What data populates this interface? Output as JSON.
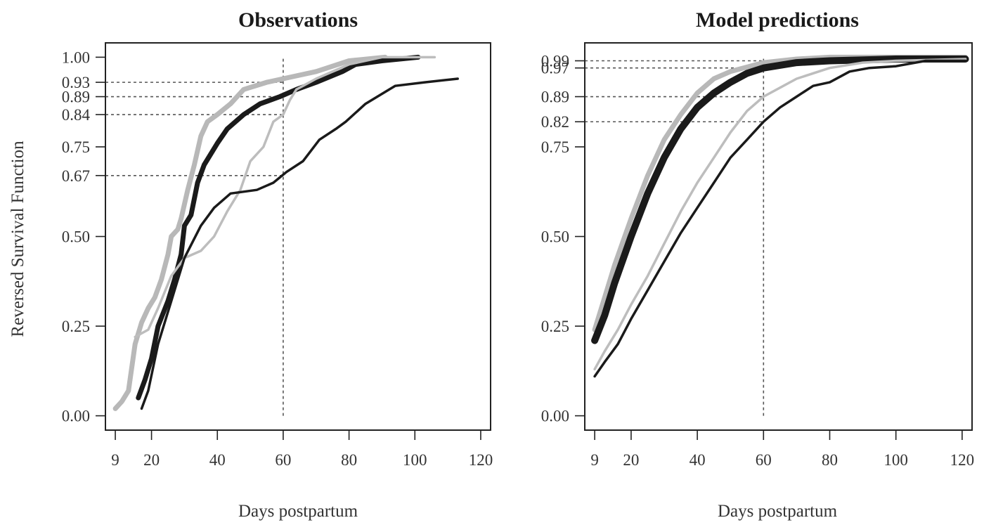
{
  "ylabel": "Reversed Survival Function",
  "chart_data": [
    {
      "type": "line",
      "title": "Observations",
      "xlabel": "Days postpartum",
      "ylabel": "Reversed Survival Function",
      "xlim": [
        6,
        123
      ],
      "ylim": [
        -0.04,
        1.04
      ],
      "x_ticks": [
        9,
        20,
        40,
        60,
        80,
        100,
        120
      ],
      "y_ticks": [
        0.0,
        0.25,
        0.5,
        0.67,
        0.75,
        0.84,
        0.89,
        0.93,
        1.0
      ],
      "y_tick_labels": [
        "0.00",
        "0.25",
        "0.50",
        "0.67",
        "0.75",
        "0.84",
        "0.89",
        "0.93",
        "1.00"
      ],
      "grid": false,
      "legend": "none",
      "reference_lines": {
        "vertical_x": 60,
        "horizontal_y": [
          0.93,
          0.89,
          0.84,
          0.67
        ]
      },
      "series": [
        {
          "color": "#b8b8b8",
          "width": 7,
          "points": [
            [
              9,
              0.02
            ],
            [
              11,
              0.04
            ],
            [
              13,
              0.07
            ],
            [
              15,
              0.2
            ],
            [
              17,
              0.26
            ],
            [
              19,
              0.3
            ],
            [
              21,
              0.33
            ],
            [
              23,
              0.38
            ],
            [
              25,
              0.45
            ],
            [
              26,
              0.5
            ],
            [
              28,
              0.52
            ],
            [
              29,
              0.55
            ],
            [
              31,
              0.63
            ],
            [
              33,
              0.7
            ],
            [
              35,
              0.78
            ],
            [
              37,
              0.82
            ],
            [
              40,
              0.84
            ],
            [
              44,
              0.87
            ],
            [
              48,
              0.91
            ],
            [
              55,
              0.93
            ],
            [
              60,
              0.94
            ],
            [
              70,
              0.96
            ],
            [
              80,
              0.99
            ],
            [
              91,
              1.0
            ]
          ]
        },
        {
          "color": "#1a1a1a",
          "width": 7,
          "points": [
            [
              16,
              0.05
            ],
            [
              18,
              0.1
            ],
            [
              20,
              0.16
            ],
            [
              22,
              0.25
            ],
            [
              25,
              0.32
            ],
            [
              27,
              0.38
            ],
            [
              29,
              0.45
            ],
            [
              30,
              0.53
            ],
            [
              32,
              0.56
            ],
            [
              34,
              0.65
            ],
            [
              36,
              0.7
            ],
            [
              40,
              0.76
            ],
            [
              43,
              0.8
            ],
            [
              48,
              0.84
            ],
            [
              53,
              0.87
            ],
            [
              59,
              0.89
            ],
            [
              64,
              0.91
            ],
            [
              70,
              0.93
            ],
            [
              78,
              0.96
            ],
            [
              82,
              0.98
            ],
            [
              90,
              0.99
            ],
            [
              101,
              1.0
            ]
          ]
        },
        {
          "color": "#bdbdbd",
          "width": 3.5,
          "points": [
            [
              15,
              0.22
            ],
            [
              19,
              0.24
            ],
            [
              22,
              0.3
            ],
            [
              26,
              0.39
            ],
            [
              30,
              0.44
            ],
            [
              35,
              0.46
            ],
            [
              39,
              0.5
            ],
            [
              43,
              0.57
            ],
            [
              47,
              0.63
            ],
            [
              50,
              0.71
            ],
            [
              54,
              0.75
            ],
            [
              57,
              0.82
            ],
            [
              60,
              0.84
            ],
            [
              62,
              0.88
            ],
            [
              64,
              0.91
            ],
            [
              70,
              0.94
            ],
            [
              80,
              0.98
            ],
            [
              90,
              1.0
            ],
            [
              106,
              1.0
            ]
          ]
        },
        {
          "color": "#1a1a1a",
          "width": 3.5,
          "points": [
            [
              17,
              0.02
            ],
            [
              19,
              0.07
            ],
            [
              22,
              0.2
            ],
            [
              26,
              0.32
            ],
            [
              30,
              0.44
            ],
            [
              35,
              0.53
            ],
            [
              39,
              0.58
            ],
            [
              44,
              0.62
            ],
            [
              52,
              0.63
            ],
            [
              57,
              0.65
            ],
            [
              61,
              0.68
            ],
            [
              66,
              0.71
            ],
            [
              71,
              0.77
            ],
            [
              76,
              0.8
            ],
            [
              79,
              0.82
            ],
            [
              85,
              0.87
            ],
            [
              94,
              0.92
            ],
            [
              103,
              0.93
            ],
            [
              113,
              0.94
            ]
          ]
        }
      ]
    },
    {
      "type": "line",
      "title": "Model predictions",
      "xlabel": "Days postpartum",
      "ylabel": "",
      "xlim": [
        6,
        123
      ],
      "ylim": [
        -0.04,
        1.04
      ],
      "x_ticks": [
        9,
        20,
        40,
        60,
        80,
        100,
        120
      ],
      "y_ticks": [
        0.0,
        0.25,
        0.5,
        0.75,
        0.82,
        0.89,
        0.97,
        0.99
      ],
      "y_tick_labels": [
        "0.00",
        "0.25",
        "0.50",
        "0.75",
        "0.82",
        "0.89",
        "0.97",
        "0.99"
      ],
      "grid": false,
      "legend": "none",
      "reference_lines": {
        "vertical_x": 60,
        "horizontal_y": [
          0.99,
          0.97,
          0.89,
          0.82
        ]
      },
      "series": [
        {
          "color": "#b8b8b8",
          "width": 7,
          "points": [
            [
              9,
              0.24
            ],
            [
              12,
              0.33
            ],
            [
              15,
              0.42
            ],
            [
              20,
              0.55
            ],
            [
              25,
              0.67
            ],
            [
              30,
              0.77
            ],
            [
              35,
              0.84
            ],
            [
              40,
              0.9
            ],
            [
              45,
              0.94
            ],
            [
              50,
              0.96
            ],
            [
              60,
              0.985
            ],
            [
              70,
              0.995
            ],
            [
              80,
              1.0
            ],
            [
              100,
              1.0
            ],
            [
              121,
              1.0
            ]
          ]
        },
        {
          "color": "#1a1a1a",
          "width": 10,
          "points": [
            [
              9,
              0.21
            ],
            [
              12,
              0.28
            ],
            [
              15,
              0.37
            ],
            [
              20,
              0.5
            ],
            [
              25,
              0.62
            ],
            [
              30,
              0.72
            ],
            [
              35,
              0.8
            ],
            [
              40,
              0.86
            ],
            [
              45,
              0.9
            ],
            [
              50,
              0.93
            ],
            [
              55,
              0.955
            ],
            [
              60,
              0.97
            ],
            [
              70,
              0.985
            ],
            [
              80,
              0.99
            ],
            [
              100,
              0.995
            ],
            [
              121,
              0.995
            ]
          ]
        },
        {
          "color": "#bdbdbd",
          "width": 3.5,
          "points": [
            [
              9,
              0.13
            ],
            [
              12,
              0.18
            ],
            [
              16,
              0.24
            ],
            [
              20,
              0.31
            ],
            [
              25,
              0.39
            ],
            [
              30,
              0.48
            ],
            [
              35,
              0.57
            ],
            [
              40,
              0.65
            ],
            [
              45,
              0.72
            ],
            [
              50,
              0.79
            ],
            [
              55,
              0.85
            ],
            [
              60,
              0.89
            ],
            [
              70,
              0.94
            ],
            [
              80,
              0.97
            ],
            [
              90,
              0.985
            ],
            [
              100,
              0.99
            ],
            [
              121,
              0.995
            ]
          ]
        },
        {
          "color": "#1a1a1a",
          "width": 3.5,
          "points": [
            [
              9,
              0.11
            ],
            [
              12,
              0.15
            ],
            [
              16,
              0.2
            ],
            [
              20,
              0.27
            ],
            [
              25,
              0.35
            ],
            [
              30,
              0.43
            ],
            [
              35,
              0.51
            ],
            [
              40,
              0.58
            ],
            [
              45,
              0.65
            ],
            [
              50,
              0.72
            ],
            [
              55,
              0.77
            ],
            [
              60,
              0.82
            ],
            [
              65,
              0.86
            ],
            [
              70,
              0.89
            ],
            [
              75,
              0.92
            ],
            [
              80,
              0.93
            ],
            [
              86,
              0.96
            ],
            [
              92,
              0.97
            ],
            [
              100,
              0.975
            ],
            [
              109,
              0.99
            ],
            [
              121,
              0.99
            ]
          ]
        }
      ]
    }
  ]
}
